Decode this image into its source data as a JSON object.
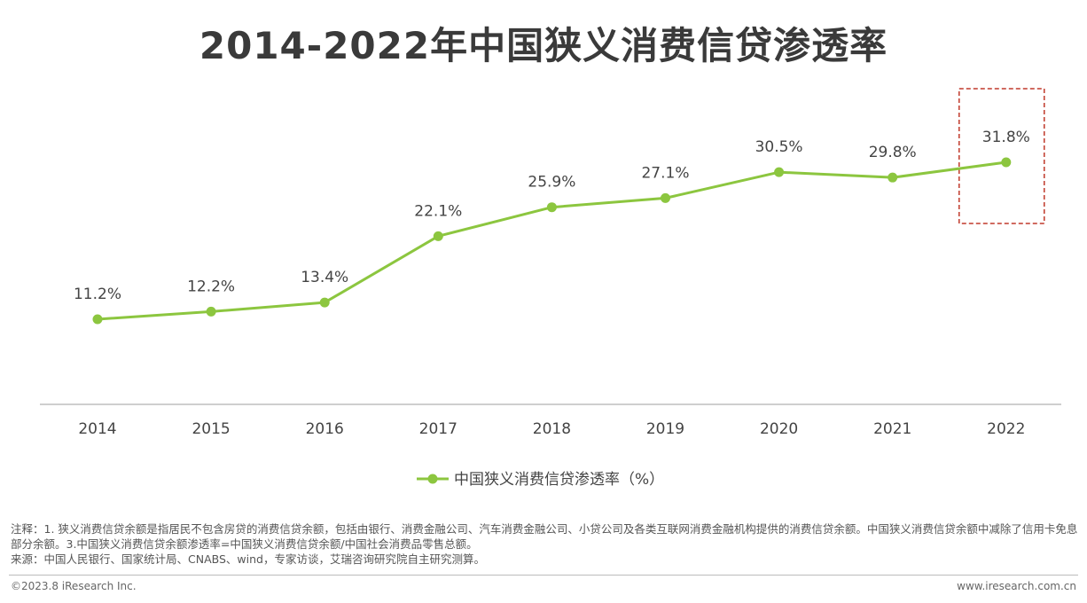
{
  "chart_data": {
    "type": "line",
    "title": "2014-2022年中国狭义消费信贷渗透率",
    "categories": [
      "2014",
      "2015",
      "2016",
      "2017",
      "2018",
      "2019",
      "2020",
      "2021",
      "2022"
    ],
    "series": [
      {
        "name": "中国狭义消费信贷渗透率（%）",
        "values": [
          11.2,
          12.2,
          13.4,
          22.1,
          25.9,
          27.1,
          30.5,
          29.8,
          31.8
        ],
        "labels": [
          "11.2%",
          "12.2%",
          "13.4%",
          "22.1%",
          "25.9%",
          "27.1%",
          "30.5%",
          "29.8%",
          "31.8%"
        ]
      }
    ],
    "xlabel": "",
    "ylabel": "",
    "ylim": [
      0,
      40
    ],
    "grid": false,
    "legend_position": "bottom-center",
    "highlight_category": "2022",
    "line_color": "#8cc63f",
    "highlight_color": "#c0392b"
  },
  "notes": {
    "line1": "注释：1. 狭义消费信贷余额是指居民不包含房贷的消费信贷余额，包括由银行、消费金融公司、汽车消费金融公司、小贷公司及各类互联网消费金融机构提供的消费信贷余额。中国狭义消费信贷余额中减除了信用卡免息部分余额。3.中国狭义消费信贷余额渗透率=中国狭义消费信贷余额/中国社会消费品零售总额。",
    "source": "来源：中国人民银行、国家统计局、CNABS、wind，专家访谈，艾瑞咨询研究院自主研究测算。"
  },
  "footer": {
    "copyright": "©2023.8 iResearch Inc.",
    "website": "www.iresearch.com.cn"
  }
}
